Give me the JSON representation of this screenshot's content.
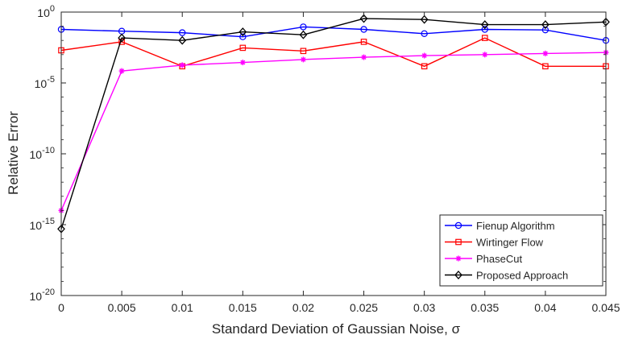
{
  "chart_data": {
    "type": "line",
    "xlabel": "Standard Deviation of Gaussian Noise, σ",
    "ylabel": "Relative Error",
    "yscale": "log",
    "xlim": [
      0,
      0.045
    ],
    "ylim": [
      1e-20,
      1
    ],
    "grid": false,
    "legend_position": "bottom-right",
    "x": [
      0,
      0.005,
      0.01,
      0.015,
      0.02,
      0.025,
      0.03,
      0.035,
      0.04,
      0.045
    ],
    "x_ticks": [
      {
        "value": 0,
        "label": "0"
      },
      {
        "value": 0.005,
        "label": "0.005"
      },
      {
        "value": 0.01,
        "label": "0.01"
      },
      {
        "value": 0.015,
        "label": "0.015"
      },
      {
        "value": 0.02,
        "label": "0.02"
      },
      {
        "value": 0.025,
        "label": "0.025"
      },
      {
        "value": 0.03,
        "label": "0.03"
      },
      {
        "value": 0.035,
        "label": "0.035"
      },
      {
        "value": 0.04,
        "label": "0.04"
      },
      {
        "value": 0.045,
        "label": "0.045"
      }
    ],
    "y_ticks": [
      {
        "value": 1,
        "base": "10",
        "exp": "0"
      },
      {
        "value": 1e-05,
        "base": "10",
        "exp": "-5"
      },
      {
        "value": 1e-10,
        "base": "10",
        "exp": "-10"
      },
      {
        "value": 1e-15,
        "base": "10",
        "exp": "-15"
      },
      {
        "value": 1e-20,
        "base": "10",
        "exp": "-20"
      }
    ],
    "series": [
      {
        "name": "Fienup Algorithm",
        "color": "#0000ff",
        "marker": "circle",
        "values": [
          0.06,
          0.045,
          0.035,
          0.018,
          0.09,
          0.06,
          0.03,
          0.06,
          0.055,
          0.01
        ]
      },
      {
        "name": "Wirtinger Flow",
        "color": "#ff0000",
        "marker": "square",
        "values": [
          0.002,
          0.008,
          0.00015,
          0.003,
          0.0018,
          0.008,
          0.00015,
          0.015,
          0.00015,
          0.00015
        ]
      },
      {
        "name": "PhaseCut",
        "color": "#ff00ff",
        "marker": "asterisk",
        "values": [
          1e-14,
          7e-05,
          0.00018,
          0.00028,
          0.00045,
          0.00065,
          0.00085,
          0.001,
          0.0012,
          0.0014
        ]
      },
      {
        "name": "Proposed Approach",
        "color": "#000000",
        "marker": "diamond",
        "values": [
          5e-16,
          0.015,
          0.01,
          0.04,
          0.025,
          0.35,
          0.3,
          0.13,
          0.13,
          0.2
        ]
      }
    ]
  }
}
